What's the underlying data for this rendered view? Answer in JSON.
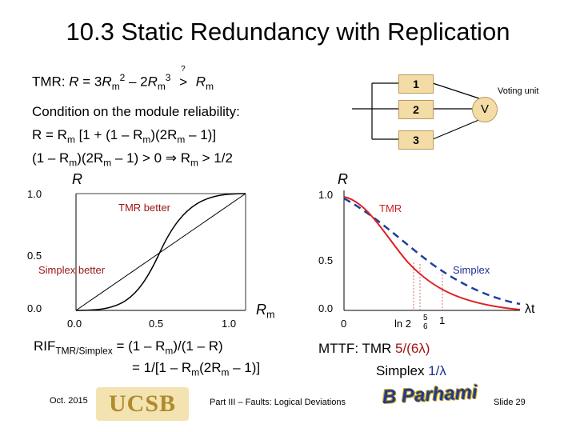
{
  "title": "10.3 Static Redundancy with Replication",
  "tmr_line": {
    "prefix": "TMR: ",
    "R": "R",
    "eq": " = 3",
    "Rm": "R",
    "m": "m",
    "sq": "2",
    "minus": " – 2",
    "cube": "3",
    "question": "?",
    "cmp": ">"
  },
  "condition": {
    "line1": "Condition on the module reliability:",
    "line2_a": "R = R",
    "line2_b": "m",
    "line2_c": " [1 + (1 – R",
    "line2_d": ")(2R",
    "line2_e": " – 1)]",
    "line3_a": "(1 – R",
    "line3_b": ")(2R",
    "line3_c": " – 1) > 0  ",
    "implies": "⇒",
    "line3_d": "  R",
    "line3_e": " > 1/2"
  },
  "voting_diagram": {
    "modules": [
      "1",
      "2",
      "3"
    ],
    "voter": "V",
    "voter_label": "Voting unit"
  },
  "left_plot": {
    "y_axis_label": "R",
    "x_axis_label_R": "R",
    "x_axis_label_m": "m",
    "y_ticks": [
      "1.0",
      "0.5",
      "0.0"
    ],
    "x_ticks": [
      "0.0",
      "0.5",
      "1.0"
    ],
    "annotation_tmr": "TMR better",
    "annotation_simplex": "Simplex better"
  },
  "right_plot": {
    "y_axis_label": "R",
    "y_ticks": [
      "1.0",
      "0.5",
      "0.0"
    ],
    "x_tick_0": "0",
    "x_tick_ln2": "ln 2",
    "x_tick_frac_num": "5",
    "x_tick_frac_den": "6",
    "x_tick_1": "1",
    "x_axis_label": "λt",
    "label_tmr": "TMR",
    "label_simplex": "Simplex"
  },
  "rif": {
    "prefix": "RIF",
    "sub": "TMR/Simplex",
    "line1": " = (1 – R",
    "line1_m": "m",
    "line1_end": ")/(1 – R)",
    "line2": "= 1/[1 – R",
    "line2_m": "m",
    "line2_mid": "(2R",
    "line2_m2": "m",
    "line2_end": " – 1)]"
  },
  "mttf": {
    "label": "MTTF: TMR ",
    "tmr_value": "5/(6λ)",
    "simplex_label": "Simplex ",
    "simplex_value": "1/λ"
  },
  "footer": {
    "date": "Oct. 2015",
    "logo": "UCSB",
    "center": "Part III – Faults: Logical Deviations",
    "author_stamp": "B Parhami",
    "slide": "Slide 29"
  },
  "colors": {
    "tmr_curve": "#dd2222",
    "simplex_curve": "#1f3f9f",
    "module_fill": "#f3dca6"
  }
}
